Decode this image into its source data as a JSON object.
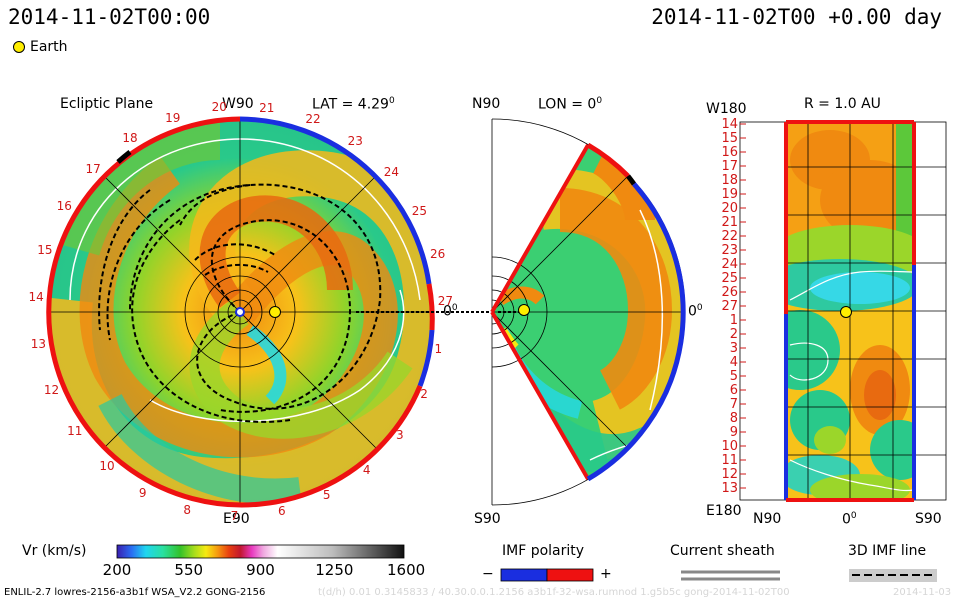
{
  "header": {
    "datetime_left": "2014-11-02T00:00",
    "datetime_right": "2014-11-02T00 +0.00 day",
    "legend_earth": "Earth"
  },
  "panels": {
    "ecliptic": {
      "title": "Ecliptic Plane",
      "top_label": "W90",
      "bottom_label": "E90",
      "lat_label": "LAT = 4.29",
      "lat_sup": "0",
      "right_axis_label": "0",
      "right_axis_sup": "0",
      "rim_labels": [
        "20",
        "21",
        "22",
        "23",
        "24",
        "25",
        "26",
        "27",
        "1",
        "2",
        "3",
        "4",
        "5",
        "6",
        "7",
        "8",
        "9",
        "10",
        "11",
        "12",
        "13",
        "14",
        "15",
        "16",
        "17",
        "18",
        "19"
      ]
    },
    "meridional": {
      "top_label": "N90",
      "lon_label": "LON = 0",
      "lon_sup": "0",
      "bottom_label": "S90",
      "right_label": "0",
      "right_sup": "0"
    },
    "r_panel": {
      "title": "R = 1.0 AU",
      "top_left_label": "W180",
      "bottom_left_label": "E180",
      "bottom_labels": [
        "N90",
        "0",
        "S90"
      ],
      "bottom_mid_sup": "0",
      "y_labels": [
        "14",
        "15",
        "16",
        "17",
        "18",
        "19",
        "20",
        "21",
        "22",
        "23",
        "24",
        "25",
        "26",
        "27",
        "1",
        "2",
        "3",
        "4",
        "5",
        "6",
        "7",
        "8",
        "9",
        "10",
        "11",
        "12",
        "13"
      ]
    }
  },
  "colorbar": {
    "label": "Vr (km/s)",
    "ticks": [
      "200",
      "550",
      "900",
      "1250",
      "1600"
    ]
  },
  "legends": {
    "imf_polarity": "IMF polarity",
    "imf_minus": "−",
    "imf_plus": "+",
    "current_sheath": "Current sheath",
    "imf_line": "3D IMF line"
  },
  "footer": {
    "model_info": "ENLIL-2.7 lowres-2156-a3b1f WSA_V2.2 GONG-2156",
    "run_info": "t(d/h) 0.01 0.3145833 / 40.30.0.0.1.2156 a3b1f-32-wsa.rumnod 1.g5b5c gong-2014-11-02T00",
    "date_stamp": "2014-11-03"
  },
  "colors": {
    "rim_positive": "#ee1111",
    "rim_negative": "#1a2ee0",
    "earth": "#ffee00"
  }
}
